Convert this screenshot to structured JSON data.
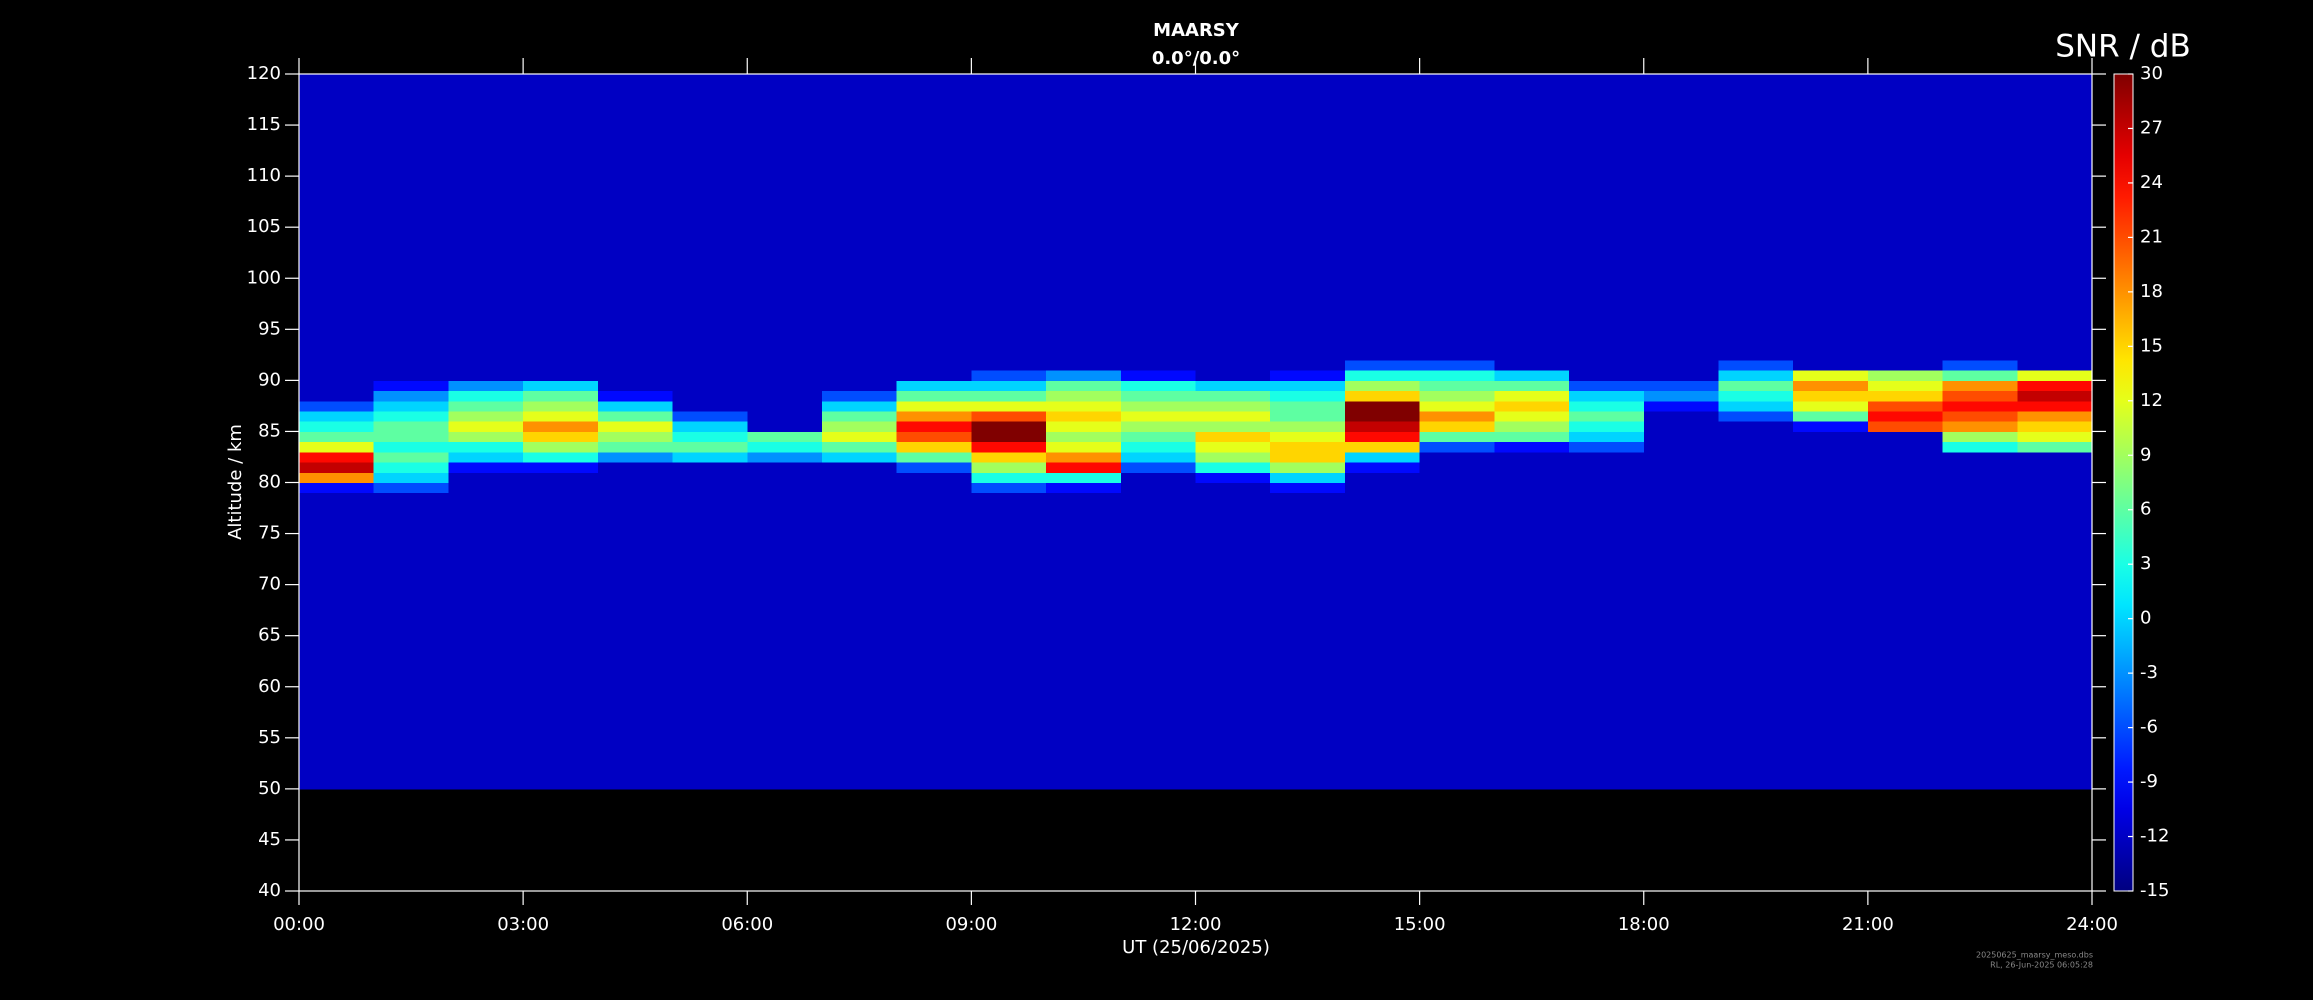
{
  "chart_data": {
    "type": "heatmap",
    "title": "MAARSY",
    "subtitle": "0.0°/0.0°",
    "x_label": "UT (25/06/2025)",
    "y_label": "Altitude / km",
    "colorbar_label": "SNR / dB",
    "footer": [
      "20250625_maarsy_meso.dbs",
      "RL, 26-Jun-2025 06:05:28"
    ],
    "background": "#000000",
    "colormap": "jet",
    "xlim": [
      0,
      24
    ],
    "xticks": [
      {
        "value": 0,
        "label": "00:00"
      },
      {
        "value": 3,
        "label": "03:00"
      },
      {
        "value": 6,
        "label": "06:00"
      },
      {
        "value": 9,
        "label": "09:00"
      },
      {
        "value": 12,
        "label": "12:00"
      },
      {
        "value": 15,
        "label": "15:00"
      },
      {
        "value": 18,
        "label": "18:00"
      },
      {
        "value": 21,
        "label": "21:00"
      },
      {
        "value": 24,
        "label": "24:00"
      }
    ],
    "ylim": [
      40,
      120
    ],
    "yticks": [
      40,
      45,
      50,
      55,
      60,
      65,
      70,
      75,
      80,
      85,
      90,
      95,
      100,
      105,
      110,
      115,
      120
    ],
    "zlim": [
      -15,
      30
    ],
    "zticks": [
      -15,
      -12,
      -9,
      -6,
      -3,
      0,
      3,
      6,
      9,
      12,
      15,
      18,
      21,
      24,
      27,
      30
    ],
    "x_edges": [
      0,
      1,
      2,
      3,
      4,
      5,
      6,
      7,
      8,
      9,
      10,
      11,
      12,
      13,
      14,
      15,
      16,
      17,
      18,
      19,
      20,
      21,
      22,
      23,
      24
    ],
    "y_edges": [
      50,
      79,
      80,
      81,
      82,
      83,
      84,
      85,
      86,
      87,
      88,
      89,
      90,
      91,
      92,
      120
    ],
    "z": [
      [
        -12,
        -12,
        -12,
        -12,
        -12,
        -12,
        -12,
        -12,
        -12,
        -12,
        -12,
        -12,
        -12,
        -12,
        -12,
        -12,
        -12,
        -12,
        -12,
        -12,
        -12,
        -12,
        -12,
        -12
      ],
      [
        -9,
        -6,
        -12,
        -12,
        -12,
        -12,
        -12,
        -12,
        -12,
        -6,
        -9,
        -12,
        -12,
        -9,
        -12,
        -12,
        -12,
        -12,
        -12,
        -12,
        -12,
        -12,
        -12,
        -12
      ],
      [
        18,
        0,
        -12,
        -12,
        -12,
        -12,
        -12,
        -12,
        -12,
        3,
        3,
        -12,
        -9,
        0,
        -12,
        -12,
        -12,
        -12,
        -12,
        -12,
        -12,
        -12,
        -12,
        -12
      ],
      [
        27,
        3,
        -9,
        -9,
        -12,
        -12,
        -12,
        -12,
        -6,
        9,
        24,
        -6,
        3,
        9,
        -9,
        -12,
        -12,
        -12,
        -12,
        -12,
        -12,
        -12,
        -12,
        -12
      ],
      [
        24,
        6,
        0,
        3,
        -3,
        0,
        -3,
        0,
        6,
        15,
        18,
        0,
        9,
        15,
        0,
        -12,
        -12,
        -12,
        -12,
        -12,
        -12,
        -12,
        -12,
        -12
      ],
      [
        12,
        3,
        3,
        9,
        6,
        6,
        3,
        6,
        15,
        24,
        12,
        3,
        12,
        15,
        15,
        -6,
        -9,
        -6,
        -12,
        -12,
        -12,
        -12,
        3,
        6
      ],
      [
        6,
        6,
        9,
        15,
        9,
        3,
        6,
        12,
        21,
        30,
        9,
        6,
        15,
        12,
        24,
        6,
        6,
        0,
        -12,
        -12,
        -12,
        -12,
        9,
        12
      ],
      [
        3,
        6,
        12,
        18,
        12,
        0,
        -12,
        9,
        24,
        30,
        12,
        9,
        9,
        9,
        27,
        15,
        9,
        3,
        -12,
        -12,
        -9,
        21,
        18,
        15
      ],
      [
        0,
        3,
        9,
        12,
        6,
        -6,
        -12,
        6,
        18,
        21,
        15,
        12,
        12,
        6,
        30,
        18,
        12,
        6,
        -12,
        -6,
        6,
        24,
        21,
        18
      ],
      [
        -6,
        0,
        6,
        9,
        0,
        -12,
        -12,
        0,
        12,
        12,
        12,
        9,
        9,
        6,
        30,
        12,
        15,
        3,
        -9,
        0,
        12,
        21,
        24,
        24
      ],
      [
        -12,
        -3,
        3,
        6,
        -9,
        -12,
        -12,
        -6,
        6,
        6,
        9,
        6,
        6,
        3,
        15,
        9,
        12,
        0,
        -3,
        3,
        15,
        15,
        21,
        27
      ],
      [
        -12,
        -9,
        -3,
        0,
        -12,
        -12,
        -12,
        -12,
        0,
        0,
        6,
        3,
        0,
        0,
        9,
        6,
        6,
        -6,
        -6,
        6,
        18,
        12,
        18,
        24
      ],
      [
        -12,
        -12,
        -12,
        -12,
        -12,
        -12,
        -12,
        -12,
        -12,
        -6,
        -3,
        -9,
        -12,
        -9,
        3,
        3,
        0,
        -12,
        -12,
        0,
        12,
        9,
        6,
        12
      ],
      [
        -12,
        -12,
        -12,
        -12,
        -12,
        -12,
        -12,
        -12,
        -12,
        -12,
        -12,
        -12,
        -12,
        -12,
        -6,
        -6,
        -12,
        -12,
        -12,
        -6,
        -12,
        -12,
        -6,
        -12
      ],
      [
        -12,
        -12,
        -12,
        -12,
        -12,
        -12,
        -12,
        -12,
        -12,
        -12,
        -12,
        -12,
        -12,
        -12,
        -12,
        -12,
        -12,
        -12,
        -12,
        -12,
        -12,
        -12,
        -12,
        -12
      ]
    ]
  }
}
